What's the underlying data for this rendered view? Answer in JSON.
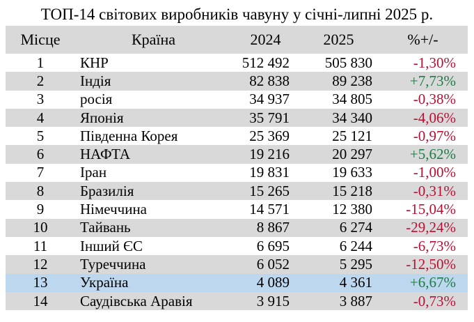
{
  "title": "ТОП-14 світових виробників чавуну у січні-липні 2025 р.",
  "colors": {
    "header_bg": "#d9d9d9",
    "row_alt": "#d9d9d9",
    "row_highlight": "#bdd7ee",
    "positive": "#1e7a46",
    "negative": "#b90f32",
    "text": "#000000",
    "background": "#ffffff"
  },
  "table": {
    "headers": [
      "Місце",
      "Країна",
      "2024",
      "2025",
      "%+/-"
    ],
    "rows": [
      {
        "rank": "1",
        "country": "КНР",
        "y2024": "512 492",
        "y2025": "505 830",
        "change": "-1,30%",
        "trend": "down",
        "highlight": false
      },
      {
        "rank": "2",
        "country": "Індія",
        "y2024": "82 838",
        "y2025": "89 238",
        "change": "+7,73%",
        "trend": "up",
        "highlight": false
      },
      {
        "rank": "3",
        "country": "росія",
        "y2024": "34 937",
        "y2025": "34 805",
        "change": "-0,38%",
        "trend": "down",
        "highlight": false
      },
      {
        "rank": "4",
        "country": "Японія",
        "y2024": "35 791",
        "y2025": "34 340",
        "change": "-4,06%",
        "trend": "down",
        "highlight": false
      },
      {
        "rank": "5",
        "country": "Південна Корея",
        "y2024": "25 369",
        "y2025": "25 121",
        "change": "-0,97%",
        "trend": "down",
        "highlight": false
      },
      {
        "rank": "6",
        "country": "НАФТА",
        "y2024": "19 216",
        "y2025": "20 297",
        "change": "+5,62%",
        "trend": "up",
        "highlight": false
      },
      {
        "rank": "7",
        "country": "Іран",
        "y2024": "19 831",
        "y2025": "19 633",
        "change": "-1,00%",
        "trend": "down",
        "highlight": false
      },
      {
        "rank": "8",
        "country": "Бразилія",
        "y2024": "15 265",
        "y2025": "15 218",
        "change": "-0,31%",
        "trend": "down",
        "highlight": false
      },
      {
        "rank": "9",
        "country": "Німеччина",
        "y2024": "14 571",
        "y2025": "12 380",
        "change": "-15,04%",
        "trend": "down",
        "highlight": false
      },
      {
        "rank": "10",
        "country": "Тайвань",
        "y2024": "8 867",
        "y2025": "6 274",
        "change": "-29,24%",
        "trend": "down",
        "highlight": false
      },
      {
        "rank": "11",
        "country": "Інший ЄС",
        "y2024": "6 695",
        "y2025": "6 244",
        "change": "-6,73%",
        "trend": "down",
        "highlight": false
      },
      {
        "rank": "12",
        "country": "Туреччина",
        "y2024": "6 052",
        "y2025": "5 295",
        "change": "-12,50%",
        "trend": "down",
        "highlight": false
      },
      {
        "rank": "13",
        "country": "Україна",
        "y2024": "4 089",
        "y2025": "4 361",
        "change": "+6,67%",
        "trend": "up",
        "highlight": true
      },
      {
        "rank": "14",
        "country": "Саудівська Аравія",
        "y2024": "3 915",
        "y2025": "3 887",
        "change": "-0,73%",
        "trend": "down",
        "highlight": false
      }
    ]
  },
  "chart_data": {
    "type": "table",
    "title": "ТОП-14 світових виробників чавуну у січні-липні 2025 р.",
    "columns": [
      "Місце",
      "Країна",
      "2024",
      "2025",
      "%+/-"
    ],
    "unit_note": "thousand tonnes (as displayed), comma decimal separator, space thousands separator",
    "rows": [
      [
        1,
        "КНР",
        512492,
        505830,
        -1.3
      ],
      [
        2,
        "Індія",
        82838,
        89238,
        7.73
      ],
      [
        3,
        "росія",
        34937,
        34805,
        -0.38
      ],
      [
        4,
        "Японія",
        35791,
        34340,
        -4.06
      ],
      [
        5,
        "Південна Корея",
        25369,
        25121,
        -0.97
      ],
      [
        6,
        "НАФТА",
        19216,
        20297,
        5.62
      ],
      [
        7,
        "Іран",
        19831,
        19633,
        -1.0
      ],
      [
        8,
        "Бразилія",
        15265,
        15218,
        -0.31
      ],
      [
        9,
        "Німеччина",
        14571,
        12380,
        -15.04
      ],
      [
        10,
        "Тайвань",
        8867,
        6274,
        -29.24
      ],
      [
        11,
        "Інший ЄС",
        6695,
        6244,
        -6.73
      ],
      [
        12,
        "Туреччина",
        6052,
        5295,
        -12.5
      ],
      [
        13,
        "Україна",
        4089,
        4361,
        6.67
      ],
      [
        14,
        "Саудівська Аравія",
        3915,
        3887,
        -0.73
      ]
    ],
    "highlighted_row": "Україна"
  }
}
